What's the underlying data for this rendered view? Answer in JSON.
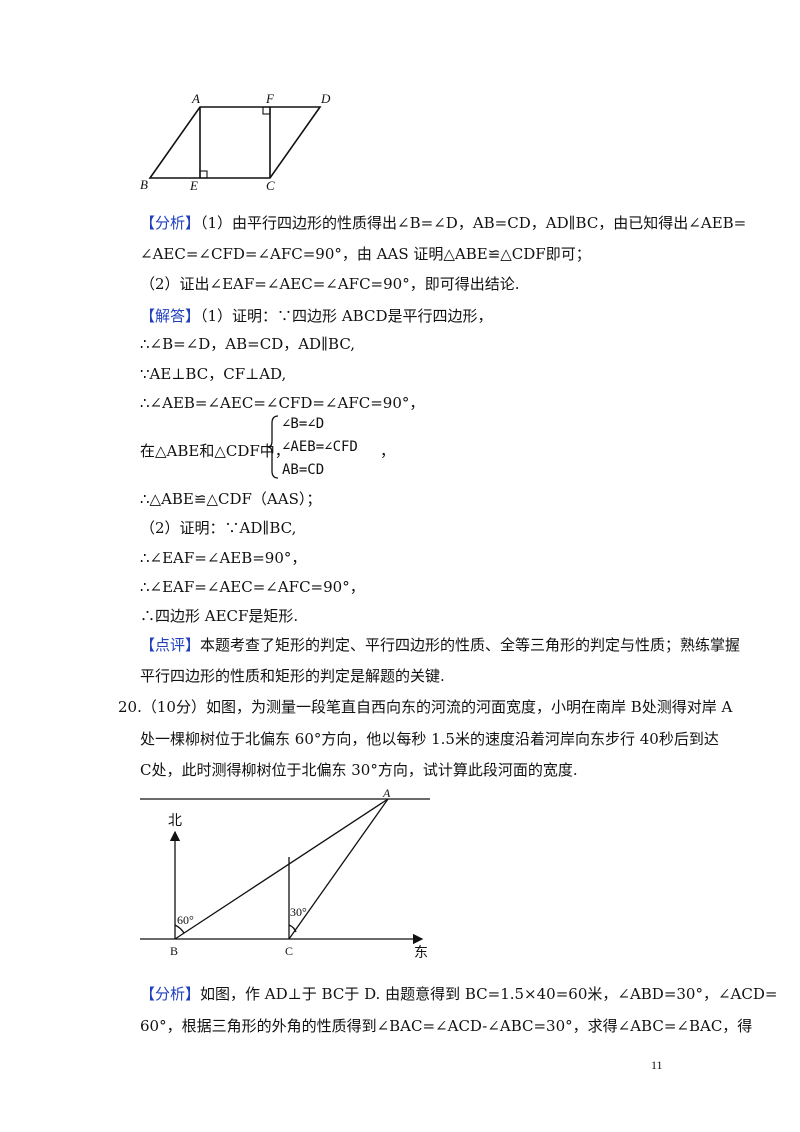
{
  "fig1": {
    "labels": {
      "A": "A",
      "F": "F",
      "D": "D",
      "B": "B",
      "E": "E",
      "C": "C"
    }
  },
  "analysis1": {
    "tag": "【分析】",
    "l1": "（1）由平行四边形的性质得出∠B=∠D，AB=CD，AD∥BC，由已知得出∠AEB=",
    "l2": "∠AEC=∠CFD=∠AFC=90°，由 AAS 证明△ABE≌△CDF即可；",
    "l3": "（2）证出∠EAF=∠AEC=∠AFC=90°，即可得出结论."
  },
  "solution1": {
    "tag": "【解答】",
    "l1": "（1）证明：∵四边形 ABCD是平行四边形，",
    "l2": "∴∠B=∠D，AB=CD，AD∥BC,",
    "l3": "∵AE⊥BC，CF⊥AD,",
    "l4": "∴∠AEB=∠AEC=∠CFD=∠AFC=90°，",
    "l5": "在△ABE和△CDF中，",
    "sys1": "∠B=∠D",
    "sys2": "∠AEB=∠CFD",
    "sys3": "AB=CD",
    "sys_comma": "，",
    "l6": "∴△ABE≌△CDF（AAS）；",
    "l7": "（2）证明：∵AD∥BC,",
    "l8": "∴∠EAF=∠AEB=90°，",
    "l9": "∴∠EAF=∠AEC=∠AFC=90°，",
    "l10": "∴四边形 AECF是矩形."
  },
  "comment1": {
    "tag": "【点评】",
    "l1": "本题考查了矩形的判定、平行四边形的性质、全等三角形的判定与性质；熟练掌握",
    "l2": "平行四边形的性质和矩形的判定是解题的关键."
  },
  "problem20": {
    "l1": "20.（10分）如图，为测量一段笔直自西向东的河流的河面宽度，小明在南岸 B处测得对岸 A",
    "l2": "处一棵柳树位于北偏东 60°方向，他以每秒 1.5米的速度沿着河岸向东步行 40秒后到达",
    "l3": "C处，此时测得柳树位于北偏东 30°方向，试计算此段河面的宽度."
  },
  "fig2": {
    "labels": {
      "north": "北",
      "east": "东",
      "A": "A",
      "B": "B",
      "C": "C",
      "angle60": "60°",
      "angle30": "30°"
    }
  },
  "analysis2": {
    "tag": "【分析】",
    "l1": "如图，作 AD⊥于 BC于 D. 由题意得到 BC=1.5×40=60米，∠ABD=30°，∠ACD=",
    "l2": "60°，根据三角形的外角的性质得到∠BAC=∠ACD-∠ABC=30°，求得∠ABC=∠BAC，得"
  },
  "page_number": "11"
}
